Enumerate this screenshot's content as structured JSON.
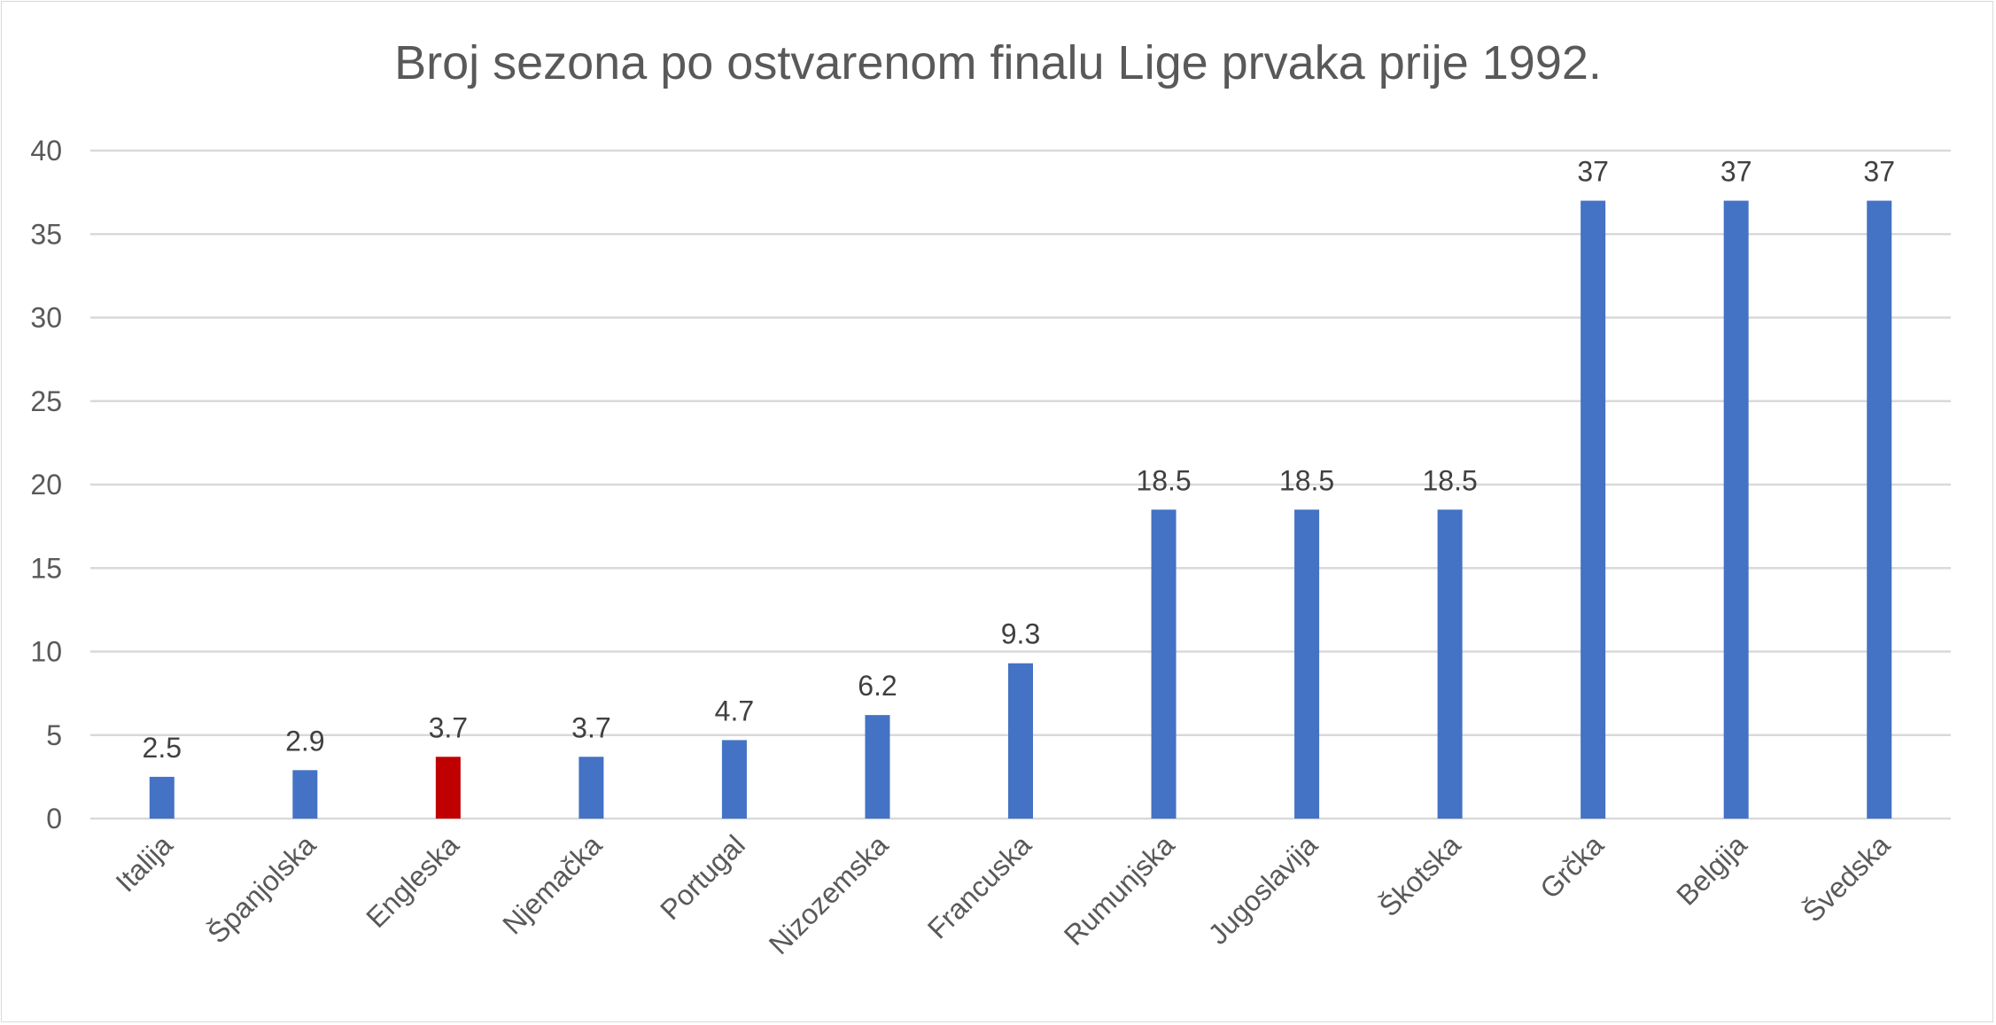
{
  "chart_data": {
    "type": "bar",
    "title": "Broj sezona po ostvarenom finalu Lige prvaka prije 1992.",
    "xlabel": "",
    "ylabel": "",
    "categories": [
      "Italija",
      "Španjolska",
      "Engleska",
      "Njemačka",
      "Portugal",
      "Nizozemska",
      "Francuska",
      "Rumunjska",
      "Jugoslavija",
      "Škotska",
      "Grčka",
      "Belgija",
      "Švedska"
    ],
    "values": [
      2.5,
      2.9,
      3.7,
      3.7,
      4.7,
      6.2,
      9.3,
      18.5,
      18.5,
      18.5,
      37,
      37,
      37
    ],
    "data_labels": [
      "2.5",
      "2.9",
      "3.7",
      "3.7",
      "4.7",
      "6.2",
      "9.3",
      "18.5",
      "18.5",
      "18.5",
      "37",
      "37",
      "37"
    ],
    "ylim": [
      0,
      40
    ],
    "yticks": [
      0,
      5,
      10,
      15,
      20,
      25,
      30,
      35,
      40
    ],
    "grid": true,
    "legend": "none",
    "bar_color": "#4472c4",
    "highlight_color": "#c00000",
    "highlight_category": "Engleska"
  }
}
